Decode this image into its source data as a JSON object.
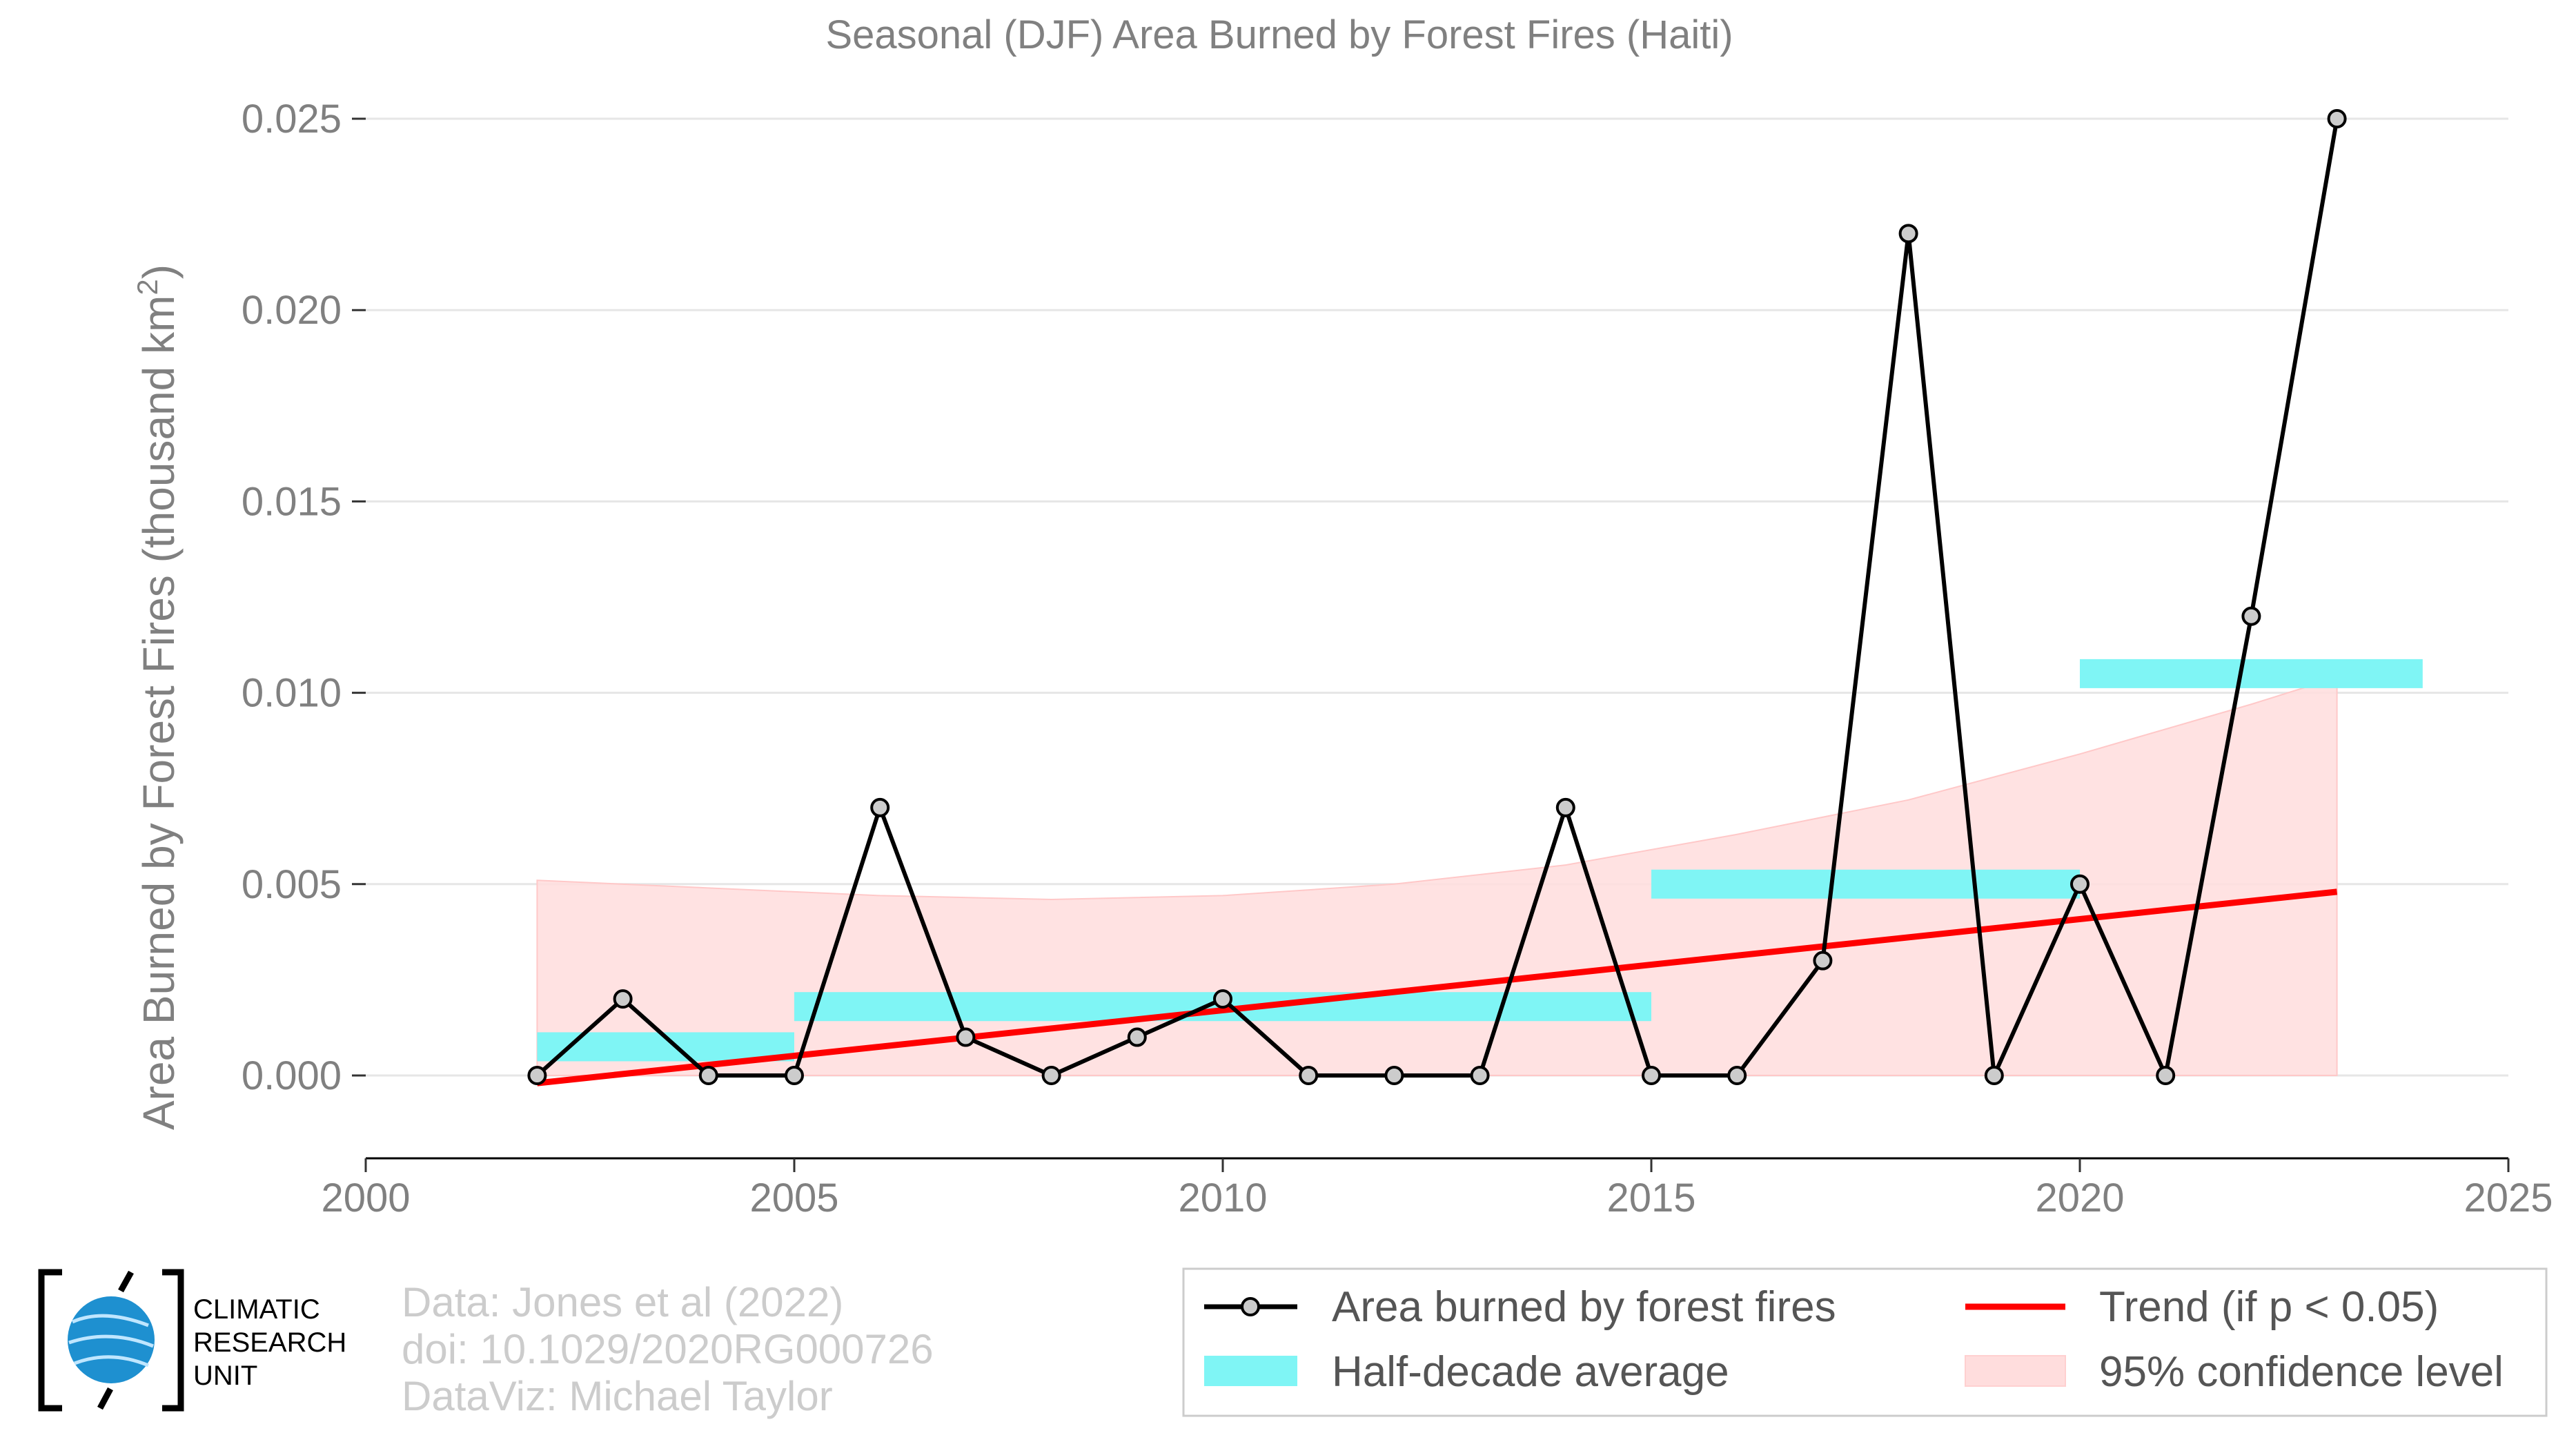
{
  "chart_data": {
    "type": "line",
    "title": "Seasonal (DJF) Area Burned by Forest Fires (Haiti)",
    "xlabel": "",
    "ylabel": "Area Burned by Forest Fires (thousand km",
    "ylabel_superscript": "2",
    "ylabel_close": ")",
    "xlim": [
      2000,
      2025
    ],
    "ylim": [
      0.0,
      0.025
    ],
    "x_ticks": [
      2000,
      2005,
      2010,
      2015,
      2020,
      2025
    ],
    "y_ticks": [
      0.0,
      0.005,
      0.01,
      0.015,
      0.02,
      0.025
    ],
    "y_tick_labels": [
      "0.000",
      "0.005",
      "0.010",
      "0.015",
      "0.020",
      "0.025"
    ],
    "grid": true,
    "series": [
      {
        "name": "Area burned by forest fires",
        "color": "#000000",
        "marker_fill": "#cccccc",
        "x": [
          2002,
          2003,
          2004,
          2005,
          2006,
          2007,
          2008,
          2009,
          2010,
          2011,
          2012,
          2013,
          2014,
          2015,
          2016,
          2017,
          2018,
          2019,
          2020,
          2021,
          2022,
          2023
        ],
        "y": [
          0.0,
          0.002,
          0.0,
          0.0,
          0.007,
          0.001,
          0.0,
          0.001,
          0.002,
          0.0,
          0.0,
          0.0,
          0.007,
          0.0,
          0.0,
          0.003,
          0.022,
          0.0,
          0.005,
          0.0,
          0.012,
          0.025
        ]
      }
    ],
    "half_decade_average": {
      "name": "Half-decade average",
      "color": "#7ff5f5",
      "segments": [
        {
          "x_start": 2002,
          "x_end": 2005,
          "value": 0.00075
        },
        {
          "x_start": 2005,
          "x_end": 2015,
          "value": 0.0018
        },
        {
          "x_start": 2015,
          "x_end": 2020,
          "value": 0.005
        },
        {
          "x_start": 2020,
          "x_end": 2024,
          "value": 0.0105
        }
      ]
    },
    "trend": {
      "name": "Trend (if p < 0.05)",
      "color": "#ff0000",
      "x": [
        2002,
        2023
      ],
      "y": [
        -0.0002,
        0.0048
      ]
    },
    "confidence_band": {
      "name": "95% confidence level",
      "color": "#ffdddd",
      "x": [
        2002,
        2004,
        2006,
        2008,
        2010,
        2012,
        2014,
        2016,
        2018,
        2020,
        2022,
        2023
      ],
      "upper": [
        0.0051,
        0.0049,
        0.0047,
        0.0046,
        0.0047,
        0.005,
        0.0055,
        0.0063,
        0.0072,
        0.0084,
        0.0097,
        0.0104
      ],
      "lower": [
        0,
        0,
        0,
        0,
        0,
        0,
        0,
        0,
        0,
        0,
        0,
        0
      ]
    },
    "legend_placement": "bottom-right",
    "legend": [
      {
        "label": "Area burned by forest fires"
      },
      {
        "label": "Trend (if p < 0.05)"
      },
      {
        "label": "Half-decade average"
      },
      {
        "label": "95% confidence level"
      }
    ]
  },
  "credits": {
    "line1": "Data: Jones et al (2022)",
    "line2": "doi: 10.1029/2020RG000726",
    "line3": "DataViz: Michael Taylor"
  },
  "logo": {
    "line1": "CLIMATIC",
    "line2": "RESEARCH",
    "line3": "UNIT",
    "globe_color": "#1e90d0"
  }
}
